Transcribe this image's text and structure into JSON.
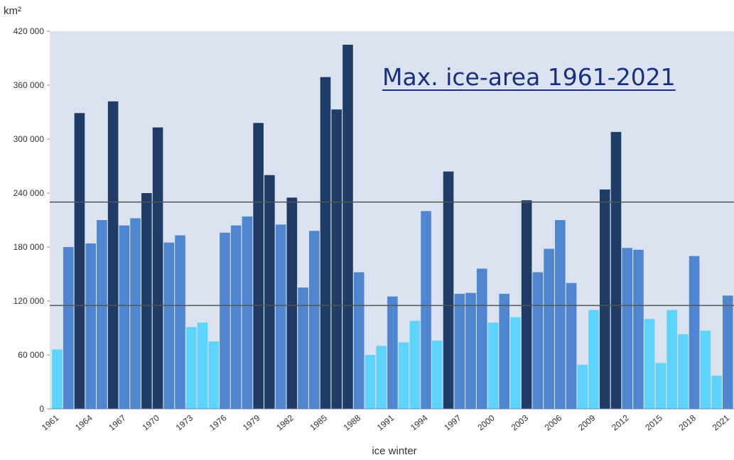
{
  "chart_data": {
    "type": "bar",
    "title": "Max. ice-area 1961-2021",
    "xlabel": "ice winter",
    "ylabel": "km²",
    "ylim": [
      0,
      420000
    ],
    "y_ticks": [
      "0",
      "60 000",
      "120 000",
      "180 000",
      "240 000",
      "300 000",
      "360 000",
      "420 000"
    ],
    "y_tick_values": [
      0,
      60000,
      120000,
      180000,
      240000,
      300000,
      360000,
      420000
    ],
    "x_tick_labels": [
      "1961",
      "1964",
      "1967",
      "1970",
      "1973",
      "1976",
      "1979",
      "1982",
      "1985",
      "1988",
      "1991",
      "1994",
      "1997",
      "2000",
      "2003",
      "2006",
      "2009",
      "2012",
      "2015",
      "2018",
      "2021"
    ],
    "categories": [
      "1961",
      "1962",
      "1963",
      "1964",
      "1965",
      "1966",
      "1967",
      "1968",
      "1969",
      "1970",
      "1971",
      "1972",
      "1973",
      "1974",
      "1975",
      "1976",
      "1977",
      "1978",
      "1979",
      "1980",
      "1981",
      "1982",
      "1983",
      "1984",
      "1985",
      "1986",
      "1987",
      "1988",
      "1989",
      "1990",
      "1991",
      "1992",
      "1993",
      "1994",
      "1995",
      "1996",
      "1997",
      "1998",
      "1999",
      "2000",
      "2001",
      "2002",
      "2003",
      "2004",
      "2005",
      "2006",
      "2007",
      "2008",
      "2009",
      "2010",
      "2011",
      "2012",
      "2013",
      "2014",
      "2015",
      "2016",
      "2017",
      "2018",
      "2019",
      "2020",
      "2021"
    ],
    "values": [
      66000,
      180000,
      329000,
      184000,
      210000,
      342000,
      204000,
      212000,
      240000,
      313000,
      185000,
      193000,
      91000,
      96000,
      75000,
      196000,
      204000,
      214000,
      318000,
      260000,
      205000,
      235000,
      135000,
      198000,
      369000,
      333000,
      405000,
      152000,
      60000,
      70000,
      125000,
      74000,
      98000,
      220000,
      76000,
      264000,
      128000,
      129000,
      156000,
      96000,
      128000,
      102000,
      232000,
      152000,
      178000,
      210000,
      140000,
      49000,
      110000,
      244000,
      308000,
      179000,
      177000,
      100000,
      51000,
      110000,
      83000,
      170000,
      87000,
      37000,
      126000
    ],
    "severity": [
      "mild",
      "average",
      "severe",
      "average",
      "average",
      "severe",
      "average",
      "average",
      "severe",
      "severe",
      "average",
      "average",
      "mild",
      "mild",
      "mild",
      "average",
      "average",
      "average",
      "severe",
      "severe",
      "average",
      "severe",
      "average",
      "average",
      "severe",
      "severe",
      "severe",
      "average",
      "mild",
      "mild",
      "average",
      "mild",
      "mild",
      "average",
      "mild",
      "severe",
      "average",
      "average",
      "average",
      "mild",
      "average",
      "mild",
      "severe",
      "average",
      "average",
      "average",
      "average",
      "mild",
      "mild",
      "severe",
      "severe",
      "average",
      "average",
      "mild",
      "mild",
      "mild",
      "mild",
      "average",
      "mild",
      "mild",
      "average"
    ],
    "reference_lines": [
      115000,
      230000
    ],
    "colors": {
      "mild": "#5ed3fb",
      "average": "#4f86cf",
      "severe": "#1f3c66",
      "plot_bg": "#dbe3f1",
      "ref_line": "#555555",
      "title": "#1b2f7a"
    },
    "grid": false
  }
}
